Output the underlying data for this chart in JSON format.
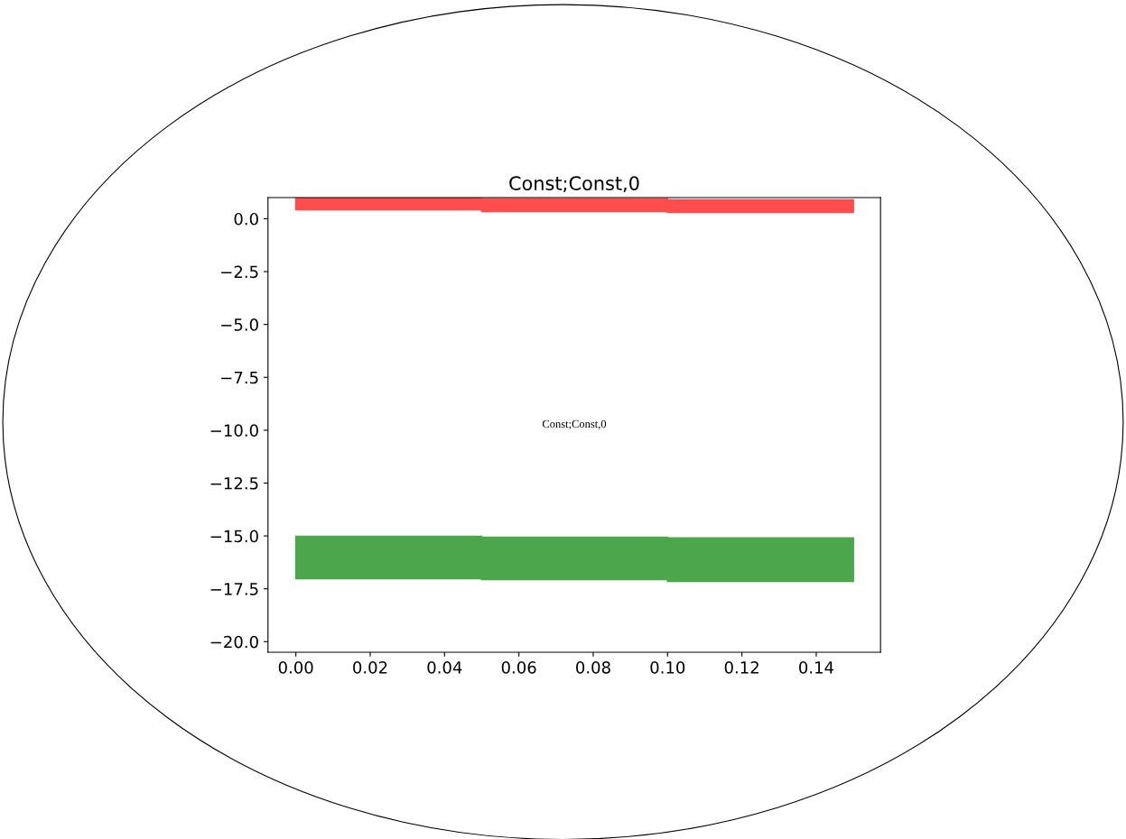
{
  "chart_data": {
    "type": "bar",
    "title": "Const;Const,0",
    "x": [
      0.0,
      0.05,
      0.1
    ],
    "series": [
      {
        "color": "#ff4d4d",
        "base": [
          0.43,
          0.34,
          0.3
        ],
        "values": [
          0.55,
          0.6,
          0.59
        ]
      },
      {
        "color": "#4ca64c",
        "base": [
          -17.02,
          -17.06,
          -17.15
        ],
        "values": [
          2.0,
          2.0,
          2.05
        ]
      }
    ],
    "annotations": [
      "Const;Const,0"
    ],
    "xlim": [
      -0.0075,
      0.1573
    ],
    "ylim": [
      -20.5,
      1.0
    ],
    "xticks": [
      {
        "value": 0.0,
        "label": "0.00"
      },
      {
        "value": 0.02,
        "label": "0.02"
      },
      {
        "value": 0.04,
        "label": "0.04"
      },
      {
        "value": 0.06,
        "label": "0.06"
      },
      {
        "value": 0.08,
        "label": "0.08"
      },
      {
        "value": 0.1,
        "label": "0.10"
      },
      {
        "value": 0.12,
        "label": "0.12"
      },
      {
        "value": 0.14,
        "label": "0.14"
      }
    ],
    "yticks": [
      {
        "value": 0.0,
        "label": "0.0"
      },
      {
        "value": -2.5,
        "label": "−2.5"
      },
      {
        "value": -5.0,
        "label": "−5.0"
      },
      {
        "value": -7.5,
        "label": "−7.5"
      },
      {
        "value": -10.0,
        "label": "−10.0"
      },
      {
        "value": -12.5,
        "label": "−12.5"
      },
      {
        "value": -15.0,
        "label": "−15.0"
      },
      {
        "value": -17.5,
        "label": "−17.5"
      },
      {
        "value": -20.0,
        "label": "−20.0"
      }
    ],
    "grid": false
  }
}
